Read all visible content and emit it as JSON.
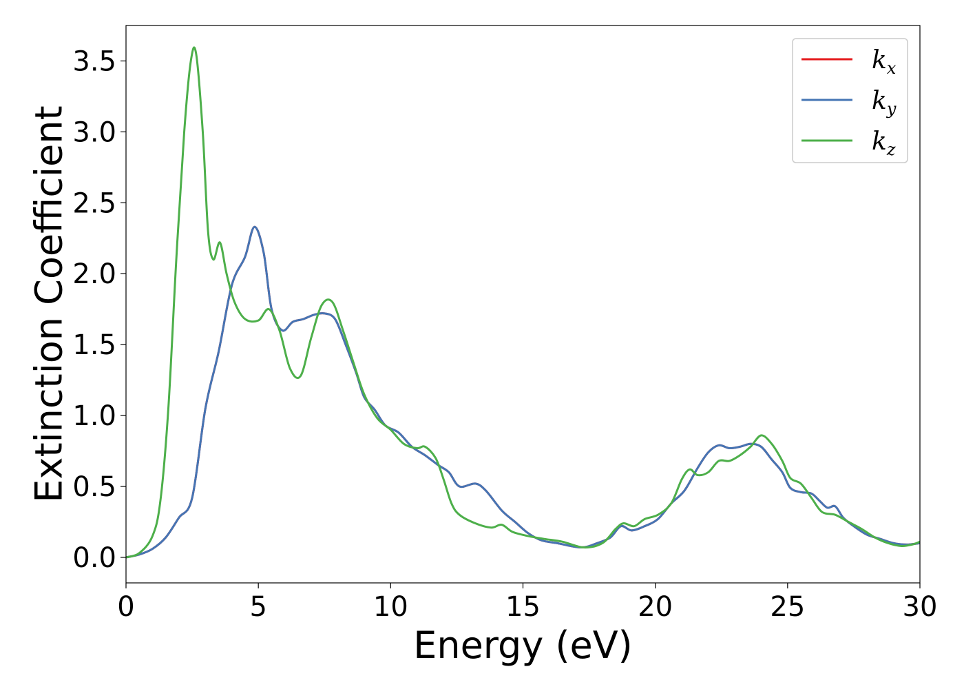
{
  "chart_data": {
    "type": "line",
    "xlabel": "Energy (eV)",
    "ylabel": "Extinction Coefficient",
    "xlim": [
      0,
      30
    ],
    "ylim": [
      -0.18,
      3.75
    ],
    "xticks": [
      0,
      5,
      10,
      15,
      20,
      25,
      30
    ],
    "yticks": [
      0.0,
      0.5,
      1.0,
      1.5,
      2.0,
      2.5,
      3.0,
      3.5
    ],
    "xtick_labels": [
      "0",
      "5",
      "10",
      "15",
      "20",
      "25",
      "30"
    ],
    "ytick_labels": [
      "0.0",
      "0.5",
      "1.0",
      "1.5",
      "2.0",
      "2.5",
      "3.0",
      "3.5"
    ],
    "grid": false,
    "legend_position": "top-right",
    "series": [
      {
        "name": "k_x",
        "legend_base": "k",
        "legend_sub": "x",
        "color": "#e41a1c",
        "x": [
          0,
          0.5,
          1.0,
          1.5,
          2.0,
          2.5,
          3.0,
          3.5,
          4.0,
          4.5,
          4.85,
          5.2,
          5.5,
          5.9,
          6.3,
          6.7,
          7.1,
          7.5,
          7.9,
          8.3,
          8.7,
          9.0,
          9.4,
          9.8,
          10.3,
          10.8,
          11.3,
          11.8,
          12.2,
          12.6,
          13.2,
          13.6,
          14.2,
          14.7,
          15.2,
          15.7,
          16.3,
          17.2,
          17.8,
          18.3,
          18.7,
          19.1,
          19.6,
          20.1,
          20.6,
          21.1,
          21.6,
          22.0,
          22.4,
          22.8,
          23.2,
          23.6,
          24.0,
          24.4,
          24.8,
          25.1,
          25.5,
          25.9,
          26.2,
          26.5,
          26.8,
          27.1,
          27.5,
          28.0,
          28.5,
          29.0,
          29.5,
          30.0
        ],
        "values": [
          0.0,
          0.02,
          0.06,
          0.14,
          0.28,
          0.42,
          1.05,
          1.45,
          1.92,
          2.12,
          2.33,
          2.15,
          1.75,
          1.6,
          1.66,
          1.68,
          1.71,
          1.72,
          1.68,
          1.5,
          1.3,
          1.13,
          1.04,
          0.93,
          0.88,
          0.78,
          0.72,
          0.65,
          0.6,
          0.5,
          0.52,
          0.47,
          0.33,
          0.25,
          0.17,
          0.12,
          0.1,
          0.07,
          0.1,
          0.14,
          0.22,
          0.19,
          0.22,
          0.27,
          0.38,
          0.47,
          0.63,
          0.74,
          0.79,
          0.77,
          0.78,
          0.8,
          0.78,
          0.69,
          0.6,
          0.49,
          0.46,
          0.45,
          0.4,
          0.35,
          0.36,
          0.28,
          0.22,
          0.16,
          0.13,
          0.1,
          0.09,
          0.1
        ]
      },
      {
        "name": "k_y",
        "legend_base": "k",
        "legend_sub": "y",
        "color": "#4575b4",
        "x": [
          0,
          0.5,
          1.0,
          1.5,
          2.0,
          2.5,
          3.0,
          3.5,
          4.0,
          4.5,
          4.85,
          5.2,
          5.5,
          5.9,
          6.3,
          6.7,
          7.1,
          7.5,
          7.9,
          8.3,
          8.7,
          9.0,
          9.4,
          9.8,
          10.3,
          10.8,
          11.3,
          11.8,
          12.2,
          12.6,
          13.2,
          13.6,
          14.2,
          14.7,
          15.2,
          15.7,
          16.3,
          17.2,
          17.8,
          18.3,
          18.7,
          19.1,
          19.6,
          20.1,
          20.6,
          21.1,
          21.6,
          22.0,
          22.4,
          22.8,
          23.2,
          23.6,
          24.0,
          24.4,
          24.8,
          25.1,
          25.5,
          25.9,
          26.2,
          26.5,
          26.8,
          27.1,
          27.5,
          28.0,
          28.5,
          29.0,
          29.5,
          30.0
        ],
        "values": [
          0.0,
          0.02,
          0.06,
          0.14,
          0.28,
          0.42,
          1.05,
          1.45,
          1.92,
          2.12,
          2.33,
          2.15,
          1.75,
          1.6,
          1.66,
          1.68,
          1.71,
          1.72,
          1.68,
          1.5,
          1.3,
          1.13,
          1.04,
          0.93,
          0.88,
          0.78,
          0.72,
          0.65,
          0.6,
          0.5,
          0.52,
          0.47,
          0.33,
          0.25,
          0.17,
          0.12,
          0.1,
          0.07,
          0.1,
          0.14,
          0.22,
          0.19,
          0.22,
          0.27,
          0.38,
          0.47,
          0.63,
          0.74,
          0.79,
          0.77,
          0.78,
          0.8,
          0.78,
          0.69,
          0.6,
          0.49,
          0.46,
          0.45,
          0.4,
          0.35,
          0.36,
          0.28,
          0.22,
          0.16,
          0.13,
          0.1,
          0.09,
          0.1
        ]
      },
      {
        "name": "k_z",
        "legend_base": "k",
        "legend_sub": "z",
        "color": "#4daf4a",
        "x": [
          0,
          0.5,
          1.0,
          1.3,
          1.6,
          1.9,
          2.2,
          2.45,
          2.65,
          2.9,
          3.1,
          3.3,
          3.55,
          3.8,
          4.1,
          4.5,
          5.0,
          5.4,
          5.8,
          6.2,
          6.6,
          7.0,
          7.4,
          7.8,
          8.2,
          8.6,
          9.0,
          9.5,
          10.0,
          10.5,
          11.0,
          11.3,
          11.7,
          12.0,
          12.3,
          12.6,
          13.2,
          13.8,
          14.2,
          14.6,
          15.2,
          15.8,
          16.5,
          17.3,
          18.0,
          18.5,
          18.8,
          19.2,
          19.6,
          20.1,
          20.6,
          21.0,
          21.3,
          21.6,
          22.0,
          22.4,
          22.8,
          23.2,
          23.6,
          24.0,
          24.4,
          24.8,
          25.1,
          25.5,
          25.9,
          26.3,
          26.8,
          27.3,
          27.8,
          28.3,
          28.8,
          29.3,
          29.7,
          30.0
        ],
        "values": [
          0.0,
          0.03,
          0.15,
          0.4,
          1.05,
          2.1,
          3.0,
          3.5,
          3.55,
          3.0,
          2.3,
          2.1,
          2.22,
          2.0,
          1.8,
          1.68,
          1.67,
          1.75,
          1.6,
          1.33,
          1.28,
          1.55,
          1.78,
          1.8,
          1.6,
          1.37,
          1.15,
          0.98,
          0.9,
          0.8,
          0.77,
          0.78,
          0.7,
          0.55,
          0.38,
          0.3,
          0.24,
          0.21,
          0.23,
          0.18,
          0.15,
          0.13,
          0.11,
          0.07,
          0.1,
          0.2,
          0.24,
          0.22,
          0.27,
          0.3,
          0.38,
          0.55,
          0.62,
          0.58,
          0.6,
          0.68,
          0.68,
          0.72,
          0.78,
          0.86,
          0.8,
          0.68,
          0.56,
          0.52,
          0.42,
          0.32,
          0.3,
          0.25,
          0.2,
          0.14,
          0.1,
          0.08,
          0.09,
          0.11
        ]
      }
    ]
  }
}
